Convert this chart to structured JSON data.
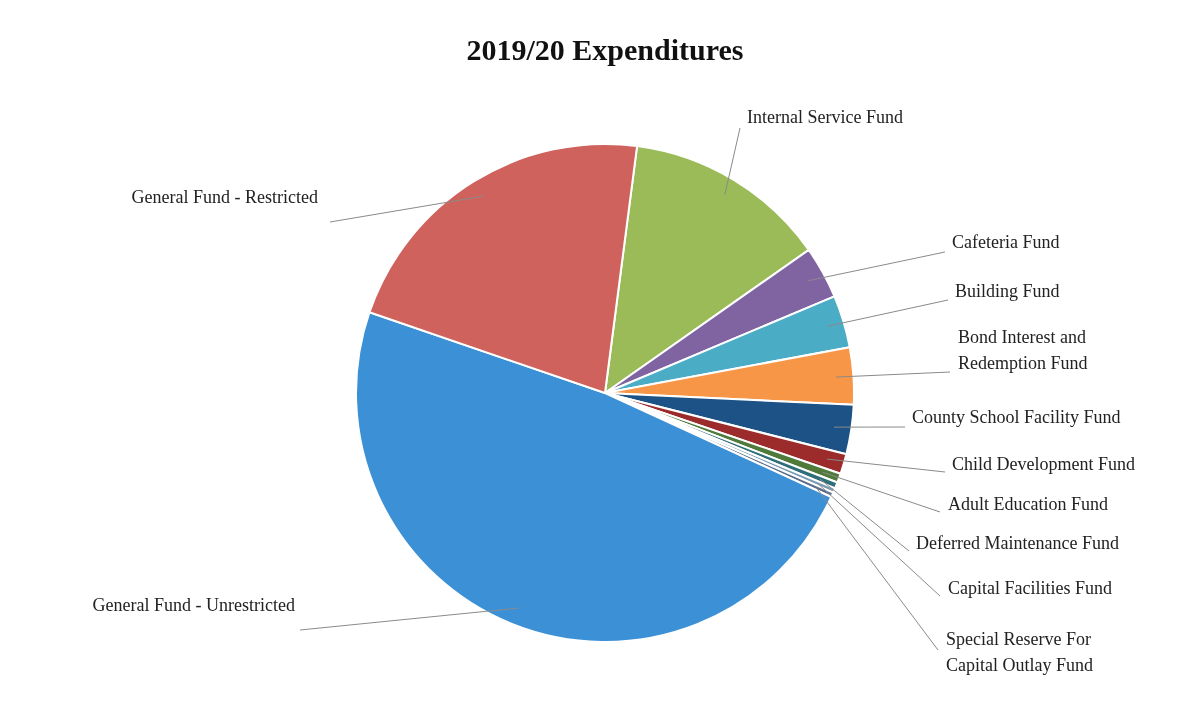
{
  "chart_data": {
    "type": "pie",
    "title": "2019/20 Expenditures",
    "categories": [
      "Internal Service Fund",
      "Cafeteria Fund",
      "Building Fund",
      "Bond Interest and Redemption Fund",
      "County School Facility Fund",
      "Child Development Fund",
      "Adult Education Fund",
      "Deferred Maintenance Fund",
      "Capital Facilities Fund",
      "Special Reserve For Capital Outlay Fund",
      "General Fund - Unrestricted",
      "General Fund - Restricted"
    ],
    "values": [
      13.2,
      3.4,
      3.4,
      3.7,
      3.2,
      1.3,
      0.6,
      0.4,
      0.3,
      0.3,
      48.4,
      21.8
    ],
    "colors": [
      "#9bbb59",
      "#8064a2",
      "#4bacc6",
      "#f79646",
      "#1d5286",
      "#9c2b2b",
      "#4f7a3a",
      "#2f6f7a",
      "#7c9bb5",
      "#5a6e8c",
      "#3b90d6",
      "#cf625c"
    ],
    "legend": false
  }
}
